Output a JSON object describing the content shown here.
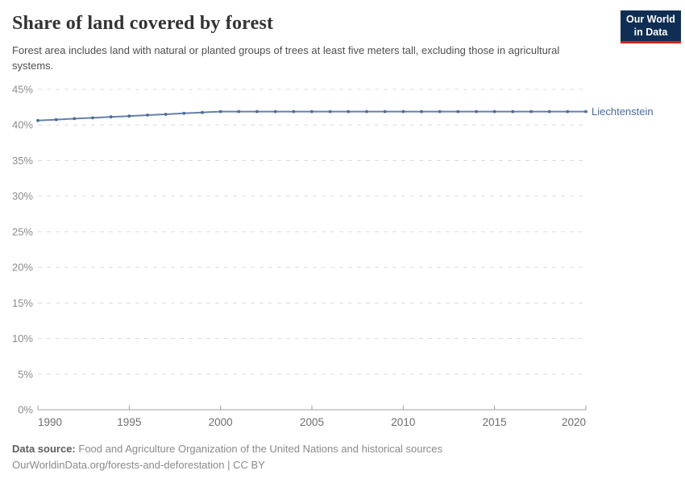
{
  "header": {
    "title": "Share of land covered by forest",
    "subtitle": "Forest area includes land with natural or planted groups of trees at least five meters tall, excluding those in agricultural systems.",
    "logo": {
      "line1": "Our World",
      "line2": "in Data",
      "bg_color": "#102E53",
      "bar_color": "#CE261E"
    }
  },
  "chart_data": {
    "type": "line",
    "title": "Share of land covered by forest",
    "xlabel": "",
    "ylabel": "",
    "xlim": [
      1990,
      2020
    ],
    "ylim": [
      0,
      45
    ],
    "xticks": [
      1990,
      1995,
      2000,
      2005,
      2010,
      2015,
      2020
    ],
    "yticks": [
      0,
      5,
      10,
      15,
      20,
      25,
      30,
      35,
      40,
      45
    ],
    "ytick_suffix": "%",
    "grid": "horizontal-dashed",
    "legend": "end-of-line-label",
    "series": [
      {
        "name": "Liechtenstein",
        "color": "#4C6A9C",
        "x": [
          1990,
          1991,
          1992,
          1993,
          1994,
          1995,
          1996,
          1997,
          1998,
          1999,
          2000,
          2001,
          2002,
          2003,
          2004,
          2005,
          2006,
          2007,
          2008,
          2009,
          2010,
          2011,
          2012,
          2013,
          2014,
          2015,
          2016,
          2017,
          2018,
          2019,
          2020
        ],
        "values": [
          40.63,
          40.75,
          40.88,
          41.0,
          41.13,
          41.25,
          41.38,
          41.5,
          41.63,
          41.75,
          41.88,
          41.88,
          41.88,
          41.88,
          41.88,
          41.88,
          41.88,
          41.88,
          41.88,
          41.88,
          41.88,
          41.88,
          41.88,
          41.88,
          41.88,
          41.88,
          41.88,
          41.88,
          41.88,
          41.88,
          41.88
        ]
      }
    ]
  },
  "footer": {
    "source_label": "Data source:",
    "source_text": "Food and Agriculture Organization of the United Nations and historical sources",
    "link_line": "OurWorldinData.org/forests-and-deforestation | CC BY"
  },
  "colors": {
    "grid": "#dcdcdc",
    "axis": "#a1a1a1",
    "ytick_label": "#8c8c8c",
    "xtick_label": "#6e6e6e",
    "title": "#333333",
    "subtitle": "#4f4f4f"
  }
}
